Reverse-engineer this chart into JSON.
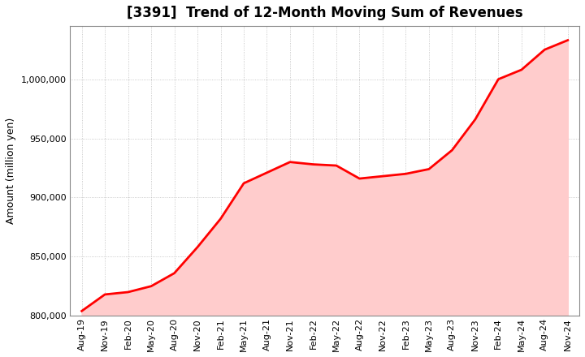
{
  "title": "[3391]  Trend of 12-Month Moving Sum of Revenues",
  "ylabel": "Amount (million yen)",
  "line_color": "#FF0000",
  "fill_color": "#FFCCCC",
  "background_color": "#FFFFFF",
  "plot_bg_color": "#FFFFFF",
  "grid_color": "#BBBBBB",
  "ylim": [
    800000,
    1045000
  ],
  "yticks": [
    800000,
    850000,
    900000,
    950000,
    1000000
  ],
  "x_labels": [
    "Aug-19",
    "Nov-19",
    "Feb-20",
    "May-20",
    "Aug-20",
    "Nov-20",
    "Feb-21",
    "May-21",
    "Aug-21",
    "Nov-21",
    "Feb-22",
    "May-22",
    "Aug-22",
    "Nov-22",
    "Feb-23",
    "May-23",
    "Aug-23",
    "Nov-23",
    "Feb-24",
    "May-24",
    "Aug-24",
    "Nov-24"
  ],
  "values": [
    804000,
    818000,
    820000,
    825000,
    836000,
    858000,
    882000,
    912000,
    921000,
    930000,
    928000,
    927000,
    916000,
    918000,
    920000,
    924000,
    940000,
    966000,
    1000000,
    1008000,
    1025000,
    1033000
  ],
  "title_fontsize": 12,
  "axis_label_fontsize": 9,
  "tick_fontsize": 8,
  "line_width": 2.0
}
